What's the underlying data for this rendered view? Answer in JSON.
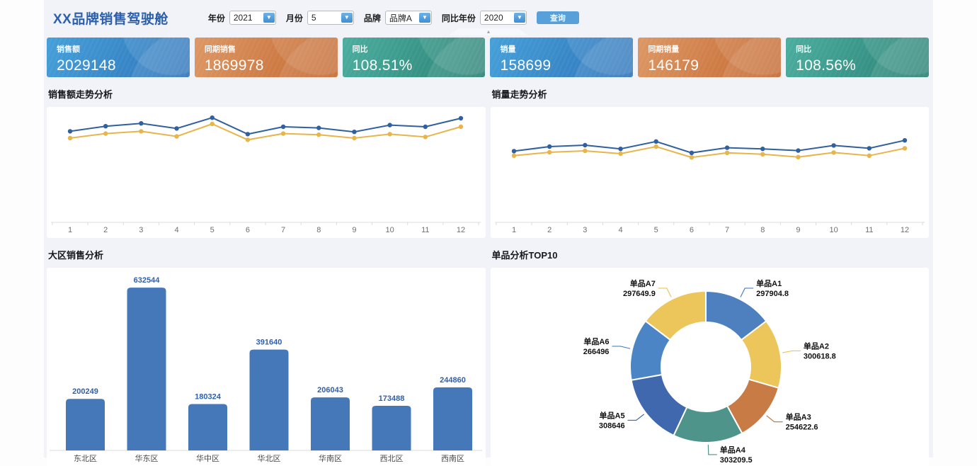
{
  "page": {
    "title": "XX品牌销售驾驶舱"
  },
  "filters": {
    "year": {
      "label": "年份",
      "value": "2021"
    },
    "month": {
      "label": "月份",
      "value": "5"
    },
    "brand": {
      "label": "品牌",
      "value": "品牌A"
    },
    "compare_year": {
      "label": "同比年份",
      "value": "2020"
    },
    "query_label": "查询"
  },
  "kpis": [
    {
      "label": "销售额",
      "value": "2029148",
      "gradient": [
        "#46a0d9",
        "#2d73b9"
      ]
    },
    {
      "label": "同期销售",
      "value": "1869978",
      "gradient": [
        "#dd9865",
        "#c3672e"
      ]
    },
    {
      "label": "同比",
      "value": "108.51%",
      "gradient": [
        "#4cae9f",
        "#278073"
      ]
    },
    {
      "label": "销量",
      "value": "158699",
      "gradient": [
        "#46a0d9",
        "#2d73b9"
      ]
    },
    {
      "label": "同期销量",
      "value": "146179",
      "gradient": [
        "#dd9865",
        "#c3672e"
      ]
    },
    {
      "label": "同比",
      "value": "108.56%",
      "gradient": [
        "#4cae9f",
        "#278073"
      ]
    }
  ],
  "chart_data": [
    {
      "type": "line",
      "title": "销售额走势分析",
      "x": [
        "1",
        "2",
        "3",
        "4",
        "5",
        "6",
        "7",
        "8",
        "9",
        "10",
        "11",
        "12"
      ],
      "ylim": [
        0,
        200000
      ],
      "grid": false,
      "legend": "none",
      "series": [
        {
          "color": "#30609f",
          "values": [
            157000,
            166000,
            171000,
            162000,
            181000,
            152000,
            165000,
            163000,
            156000,
            168000,
            165000,
            180000
          ]
        },
        {
          "color": "#e7b54a",
          "values": [
            145000,
            153000,
            157000,
            148000,
            170000,
            142000,
            153000,
            151000,
            145000,
            152000,
            147000,
            165000
          ]
        }
      ]
    },
    {
      "type": "line",
      "title": "销量走势分析",
      "x": [
        "1",
        "2",
        "3",
        "4",
        "5",
        "6",
        "7",
        "8",
        "9",
        "10",
        "11",
        "12"
      ],
      "ylim": [
        0,
        20000
      ],
      "grid": false,
      "legend": "none",
      "series": [
        {
          "color": "#30609f",
          "values": [
            12200,
            13000,
            13250,
            12600,
            13900,
            11900,
            12800,
            12600,
            12300,
            13200,
            12700,
            14100
          ]
        },
        {
          "color": "#e7b54a",
          "values": [
            11400,
            12000,
            12250,
            11750,
            13000,
            11100,
            11900,
            11650,
            11150,
            11950,
            11400,
            12700
          ]
        }
      ]
    },
    {
      "type": "bar",
      "title": "大区销售分析",
      "categories": [
        "东北区",
        "华东区",
        "华中区",
        "华北区",
        "华南区",
        "西北区",
        "西南区"
      ],
      "values": [
        200249,
        632544,
        180324,
        391640,
        206043,
        173488,
        244860
      ],
      "ylim": [
        0,
        710000
      ],
      "bar_color": "#4478b8",
      "value_label_color": "#2e5fae",
      "category_label_color": "#4a4a4a"
    },
    {
      "type": "donut",
      "title": "单品分析TOP10",
      "items": [
        {
          "name": "单品A1",
          "value": 297904.8,
          "label": "297904.8",
          "color": "#4e80c0"
        },
        {
          "name": "单品A2",
          "value": 300618.8,
          "label": "300618.8",
          "color": "#ecc55b"
        },
        {
          "name": "单品A3",
          "value": 254622.6,
          "label": "254622.6",
          "color": "#c97b46"
        },
        {
          "name": "单品A4",
          "value": 303209.5,
          "label": "303209.5",
          "color": "#4e948b"
        },
        {
          "name": "单品A5",
          "value": 308646,
          "label": "308646",
          "color": "#3f68af"
        },
        {
          "name": "单品A6",
          "value": 266496,
          "label": "266496",
          "color": "#4b85c6"
        },
        {
          "name": "单品A7",
          "value": 297649.9,
          "label": "297649.9",
          "color": "#ecc55b"
        }
      ]
    }
  ],
  "colors": {
    "accent_blue": "#2c5fad",
    "page_bg": "#f1f3f8",
    "axis_line": "#dcdcdc",
    "axis_label": "#6f6f6f"
  }
}
